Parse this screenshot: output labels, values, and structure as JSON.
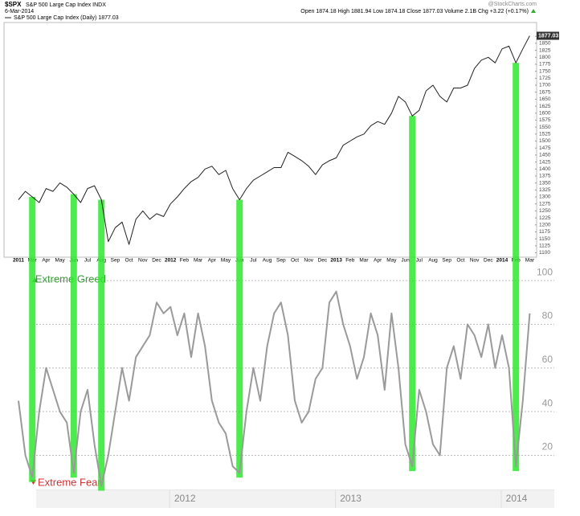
{
  "chart_data": [
    {
      "type": "line",
      "symbol": "$SPX",
      "title": "S&P 500 Large Cap Index INDX",
      "date": "6-Mar-2014",
      "legend": "S&P 500 Large Cap Index (Daily) 1877.03",
      "quote": "Open 1874.18 High 1881.94 Low 1874.18 Close 1877.03 Volume 2.1B Chg +3.22 (+0.17%)",
      "credit": "@StockCharts.com",
      "color": "#222222",
      "categories": [
        "2011",
        null,
        "Mar",
        null,
        "Apr",
        null,
        "May",
        null,
        "Jun",
        null,
        "Jul",
        null,
        "Aug",
        null,
        "Sep",
        null,
        "Oct",
        null,
        "Nov",
        null,
        "Dec",
        null,
        "2012",
        null,
        "Feb",
        null,
        "Mar",
        null,
        "Apr",
        null,
        "May",
        null,
        "Jun",
        null,
        "Jul",
        null,
        "Aug",
        null,
        "Sep",
        null,
        "Oct",
        null,
        "Nov",
        null,
        "Dec",
        null,
        "2013",
        null,
        "Feb",
        null,
        "Mar",
        null,
        "Apr",
        null,
        "May",
        null,
        "Jun",
        null,
        "Jul",
        null,
        "Aug",
        null,
        "Sep",
        null,
        "Oct",
        null,
        "Nov",
        null,
        "Dec",
        null,
        "2014",
        null,
        "Feb",
        null,
        "Mar"
      ],
      "values": [
        1290,
        1320,
        1300,
        1280,
        1330,
        1320,
        1350,
        1335,
        1310,
        1280,
        1330,
        1340,
        1290,
        1140,
        1190,
        1210,
        1130,
        1220,
        1250,
        1220,
        1240,
        1230,
        1275,
        1300,
        1330,
        1355,
        1370,
        1400,
        1410,
        1380,
        1395,
        1330,
        1290,
        1330,
        1360,
        1375,
        1390,
        1405,
        1405,
        1460,
        1445,
        1430,
        1410,
        1380,
        1415,
        1430,
        1440,
        1485,
        1500,
        1515,
        1525,
        1555,
        1570,
        1560,
        1600,
        1660,
        1640,
        1590,
        1610,
        1680,
        1700,
        1660,
        1640,
        1690,
        1690,
        1700,
        1760,
        1790,
        1800,
        1780,
        1830,
        1840,
        1780,
        1830,
        1877.03
      ],
      "ylim": [
        1090,
        1890
      ],
      "yticks": [
        1100,
        1125,
        1150,
        1175,
        1200,
        1225,
        1250,
        1275,
        1300,
        1325,
        1350,
        1375,
        1400,
        1425,
        1450,
        1475,
        1500,
        1525,
        1550,
        1575,
        1600,
        1625,
        1650,
        1675,
        1700,
        1725,
        1750,
        1775,
        1800,
        1825,
        1850,
        1875
      ]
    },
    {
      "type": "line",
      "color": "#9a9a9a",
      "annotations": [
        "Extreme Greed",
        "Extreme Fear"
      ],
      "categories": [
        null,
        null,
        null,
        null,
        null,
        null,
        null,
        null,
        null,
        null,
        null,
        null,
        null,
        null,
        null,
        null,
        null,
        null,
        null,
        null,
        null,
        null,
        "2012",
        null,
        null,
        null,
        null,
        null,
        null,
        null,
        null,
        null,
        null,
        null,
        null,
        null,
        null,
        null,
        null,
        null,
        null,
        null,
        null,
        null,
        null,
        null,
        "2013",
        null,
        null,
        null,
        null,
        null,
        null,
        null,
        null,
        null,
        null,
        null,
        null,
        null,
        null,
        null,
        null,
        null,
        null,
        null,
        null,
        null,
        null,
        null,
        "2014",
        null,
        null,
        null,
        null
      ],
      "values": [
        45,
        20,
        10,
        40,
        60,
        50,
        40,
        35,
        12,
        40,
        50,
        25,
        6,
        20,
        40,
        60,
        45,
        65,
        70,
        75,
        90,
        85,
        88,
        75,
        85,
        65,
        85,
        70,
        45,
        35,
        30,
        15,
        12,
        40,
        60,
        45,
        70,
        85,
        90,
        75,
        45,
        35,
        40,
        55,
        60,
        90,
        95,
        80,
        70,
        55,
        65,
        85,
        75,
        50,
        85,
        60,
        25,
        15,
        50,
        40,
        25,
        20,
        60,
        70,
        55,
        80,
        75,
        65,
        80,
        60,
        75,
        60,
        15,
        45,
        85
      ],
      "ylim": [
        4,
        103
      ],
      "yticks": [
        20,
        40,
        60,
        80,
        100
      ],
      "grid": true
    }
  ],
  "highlights": [
    2,
    8,
    12,
    32,
    57,
    72
  ],
  "highlight_color": "#2ee82e"
}
